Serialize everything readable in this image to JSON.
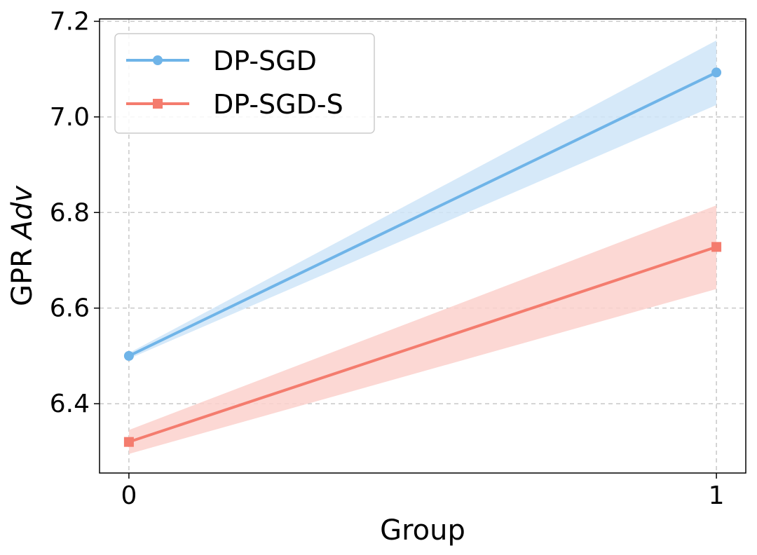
{
  "chart_data": {
    "type": "line",
    "title": "",
    "xlabel": "Group",
    "ylabel_prefix": "GPR ",
    "ylabel_italic": "Adv",
    "x": [
      0,
      1
    ],
    "xticks": [
      "0",
      "1"
    ],
    "yticks": [
      "6.4",
      "6.6",
      "6.8",
      "7.0",
      "7.2"
    ],
    "ytick_values": [
      6.4,
      6.6,
      6.8,
      7.0,
      7.2
    ],
    "xlim": [
      -0.05,
      1.05
    ],
    "ylim": [
      6.255,
      7.205
    ],
    "grid": true,
    "legend_position": "top-left",
    "series": [
      {
        "name": "DP-SGD",
        "values": [
          6.5,
          7.093
        ],
        "lower": [
          6.494,
          7.025
        ],
        "upper": [
          6.506,
          7.16
        ],
        "color": "#6fb4e8",
        "fill": "#cfe5f8",
        "marker": "circle"
      },
      {
        "name": "DP-SGD-S",
        "values": [
          6.32,
          6.728
        ],
        "lower": [
          6.295,
          6.64
        ],
        "upper": [
          6.345,
          6.815
        ],
        "color": "#f47c6e",
        "fill": "#fbd1cc",
        "marker": "square"
      }
    ]
  }
}
